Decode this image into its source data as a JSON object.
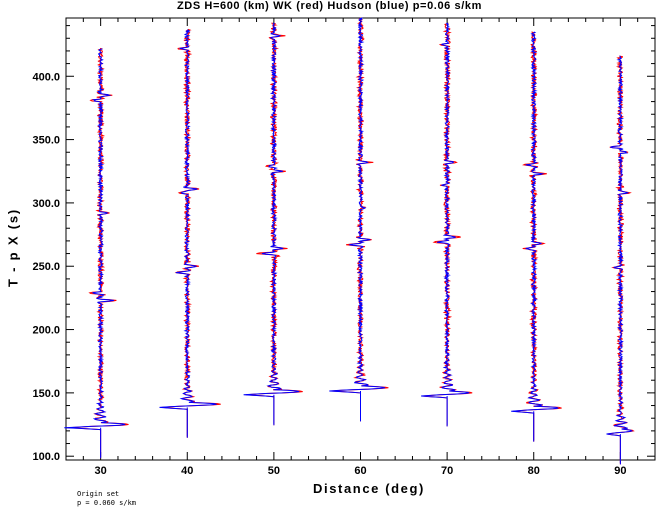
{
  "chart_data": {
    "type": "line",
    "title": "ZDS H=600 (km) WK (red) Hudson (blue) p=0.06 s/km",
    "xlabel": "Distance (deg)",
    "ylabel": "T - p X (s)",
    "xlim": [
      26,
      94
    ],
    "ylim": [
      97,
      446
    ],
    "xticks": [
      "30",
      "40",
      "50",
      "60",
      "70",
      "80",
      "90"
    ],
    "xtick_values": [
      30,
      40,
      50,
      60,
      70,
      80,
      90
    ],
    "yticks": [
      "100.0",
      "150.0",
      "200.0",
      "250.0",
      "300.0",
      "350.0",
      "400.0"
    ],
    "ytick_values": [
      100,
      150,
      200,
      250,
      300,
      350,
      400
    ],
    "grid": false,
    "series": [
      {
        "name": "WK",
        "color": "#ff0000"
      },
      {
        "name": "Hudson",
        "color": "#0000ff"
      }
    ],
    "traces": [
      {
        "distance": 30,
        "onset": 122.5,
        "end": 422,
        "first_amp": -4.2,
        "second_amp": 3.0,
        "events": [
          [
            223,
            1.6
          ],
          [
            229,
            -1.2
          ],
          [
            292,
            1.0
          ],
          [
            385,
            1.3
          ],
          [
            381,
            -1.0
          ]
        ]
      },
      {
        "distance": 40,
        "onset": 138.5,
        "end": 437,
        "first_amp": -3.2,
        "second_amp": 3.6,
        "events": [
          [
            245,
            -1.4
          ],
          [
            250,
            1.3
          ],
          [
            311,
            1.2
          ],
          [
            308,
            -0.9
          ],
          [
            422,
            -1.0
          ]
        ]
      },
      {
        "distance": 50,
        "onset": 148.5,
        "end": 442,
        "first_amp": -3.5,
        "second_amp": 3.1,
        "events": [
          [
            260,
            -1.6
          ],
          [
            264,
            1.3
          ],
          [
            325,
            1.1
          ],
          [
            329,
            -0.8
          ],
          [
            432,
            1.0
          ]
        ]
      },
      {
        "distance": 60,
        "onset": 151.5,
        "end": 446,
        "first_amp": -3.6,
        "second_amp": 3.0,
        "events": [
          [
            267,
            -1.4
          ],
          [
            271,
            1.2
          ],
          [
            332,
            1.1
          ],
          [
            296,
            0.5
          ]
        ]
      },
      {
        "distance": 70,
        "onset": 147.5,
        "end": 442,
        "first_amp": -3.0,
        "second_amp": 2.7,
        "events": [
          [
            269,
            -1.4
          ],
          [
            273,
            1.3
          ],
          [
            332,
            1.0
          ],
          [
            314,
            -0.6
          ],
          [
            425,
            -0.6
          ]
        ]
      },
      {
        "distance": 80,
        "onset": 135.5,
        "end": 435,
        "first_amp": -2.6,
        "second_amp": 3.0,
        "events": [
          [
            264,
            -1.0
          ],
          [
            268,
            1.0
          ],
          [
            323,
            1.2
          ],
          [
            330,
            -1.0
          ]
        ]
      },
      {
        "distance": 90,
        "onset": 117.5,
        "end": 416,
        "first_amp": -1.6,
        "second_amp": 1.4,
        "events": [
          [
            249,
            -0.9
          ],
          [
            308,
            0.9
          ],
          [
            344,
            -1.3
          ],
          [
            340,
            0.8
          ]
        ]
      }
    ]
  },
  "footer": {
    "line1": "Origin set",
    "line2": "p = 0.060 s/km"
  }
}
